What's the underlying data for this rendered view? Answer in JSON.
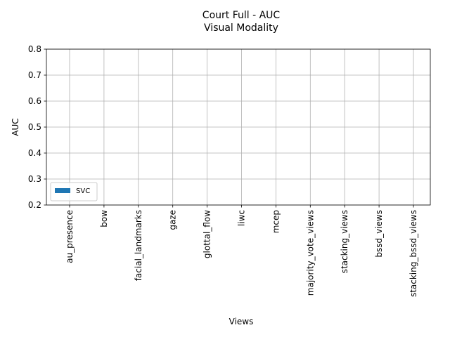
{
  "chart_data": {
    "type": "bar",
    "title": "Court Full - AUC",
    "subtitle": "Visual Modality",
    "x_label": "Views",
    "y_label": "AUC",
    "categories": [
      "au_presence",
      "bow",
      "facial_landmarks",
      "gaze",
      "glottal_flow",
      "liwc",
      "mcep",
      "majority_vote_views",
      "stacking_views",
      "bssd_views",
      "stacking_bssd_views"
    ],
    "series": [
      {
        "name": "SVC",
        "color": "#1f77b4",
        "values": [
          null,
          null,
          null,
          null,
          null,
          null,
          null,
          null,
          null,
          null,
          null
        ]
      }
    ],
    "ylim": [
      0.2,
      0.8
    ],
    "yticks": [
      0.2,
      0.3,
      0.4,
      0.5,
      0.6,
      0.7,
      0.8
    ],
    "grid": true,
    "legend": "lower left"
  }
}
